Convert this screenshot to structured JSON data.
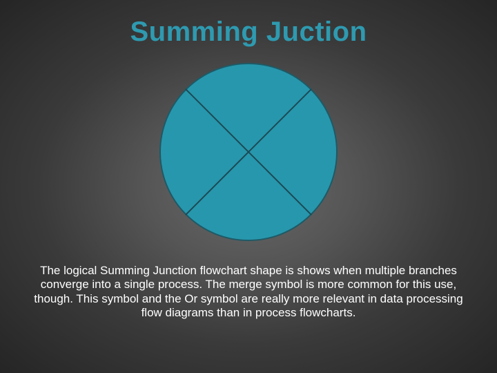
{
  "title": "Summing Juction",
  "symbol": {
    "type": "summing-junction",
    "shape": "circle",
    "diameter": 258,
    "fill_color": "#2797ad",
    "stroke_color": "#1e5a66",
    "cross_stroke_color": "#1b4a54",
    "stroke_width": 2,
    "cross_stroke_width": 2
  },
  "description": "The logical Summing Junction flowchart shape is shows when multiple branches converge into a single process. The merge symbol is more common for this use, though. This symbol and the Or symbol are really more relevant in data processing flow diagrams than in process flowcharts.",
  "background": {
    "gradient_type": "radial",
    "stops": [
      "#6a6a6a",
      "#555555",
      "#3a3a3a",
      "#252525"
    ]
  },
  "typography": {
    "title_fontsize": 40,
    "title_color": "#2e9ab0",
    "desc_fontsize": 17,
    "desc_color": "#ffffff",
    "font_family": "Arial"
  }
}
